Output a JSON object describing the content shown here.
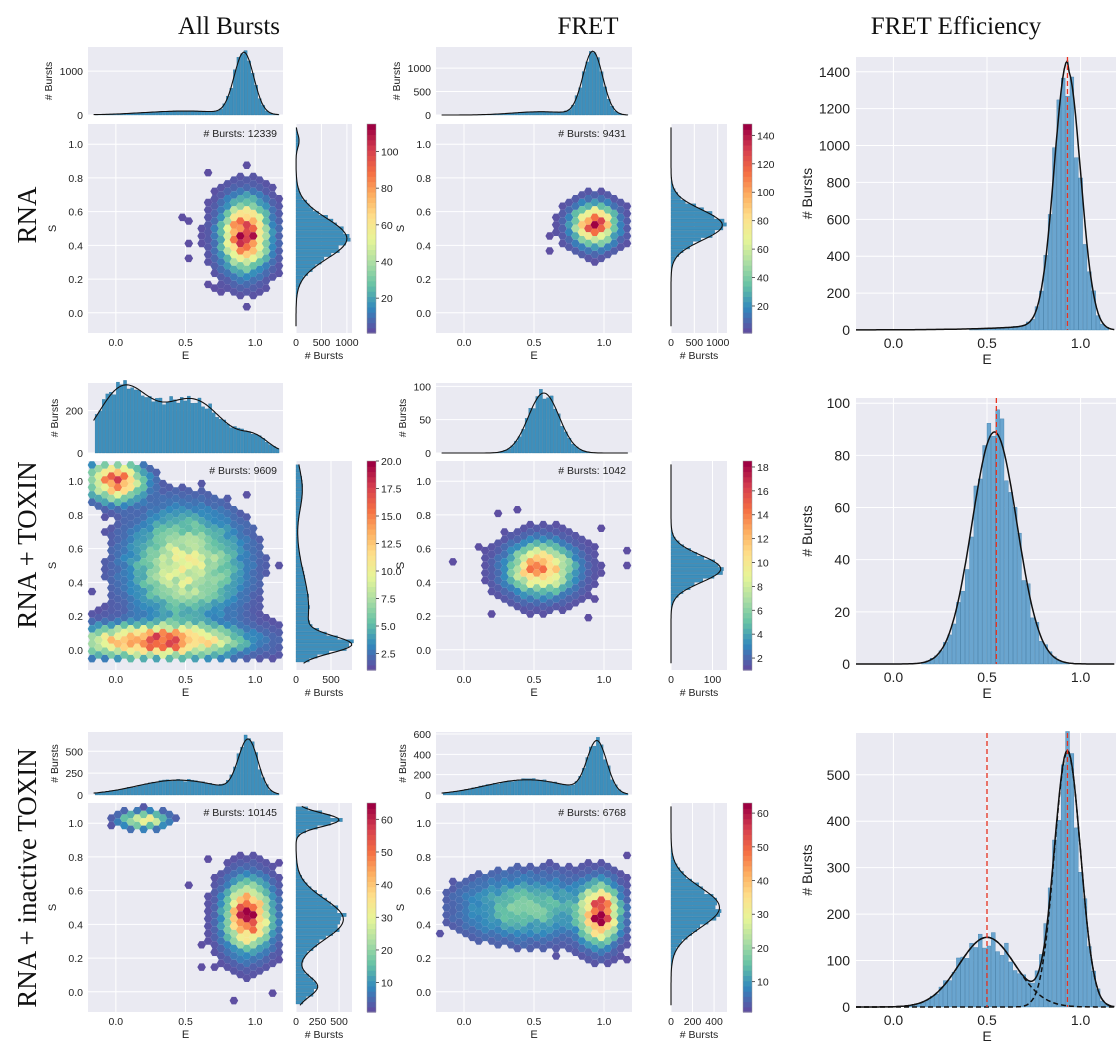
{
  "column_titles": [
    "All Bursts",
    "FRET",
    "FRET Efficiency"
  ],
  "row_titles": [
    "RNA",
    "RNA + TOXIN",
    "RNA + inactive TOXIN"
  ],
  "colors": {
    "panel_bg": "#eaeaf2",
    "grid": "#ffffff",
    "hist_bar": "#3d8fbc",
    "big_hist_bar": "#6aa5cf",
    "kde": "#111111",
    "mean_line": "#e8331f",
    "colormap": [
      "#5e4fa2",
      "#3288bd",
      "#66c2a5",
      "#abdda4",
      "#e6f598",
      "#fee08b",
      "#fdae61",
      "#f46d43",
      "#d53e4f",
      "#9e0142"
    ]
  },
  "chart_data": [
    {
      "type": "heatmap",
      "row": "RNA",
      "column": "All Bursts",
      "xlabel": "E",
      "ylabel": "S",
      "annotation": "# Bursts: 12339",
      "xlim": [
        -0.2,
        1.2
      ],
      "ylim": [
        -0.12,
        1.12
      ],
      "xticks": [
        "0.0",
        "0.5",
        "1.0"
      ],
      "yticks": [
        "0.0",
        "0.2",
        "0.4",
        "0.6",
        "0.8",
        "1.0"
      ],
      "top_hist": {
        "ylabel": "# Bursts",
        "yticks": [
          "0",
          "1000"
        ],
        "ymax": 1550,
        "peaks": [
          {
            "center": 0.92,
            "height": 1400,
            "width": 0.07
          },
          {
            "center": 0.5,
            "height": 90,
            "width": 0.3
          }
        ]
      },
      "side_hist": {
        "xlabel": "# Bursts",
        "xticks": [
          "0",
          "500",
          "1000"
        ],
        "xmax": 1100,
        "peaks": [
          {
            "center": 0.44,
            "height": 1000,
            "width": 0.12
          },
          {
            "center": 1.02,
            "height": 60,
            "width": 0.04
          }
        ]
      },
      "colorbar": {
        "ticks": [
          "20",
          "40",
          "60",
          "80",
          "100"
        ],
        "min": 1,
        "max": 115
      },
      "clusters": [
        {
          "cx": 0.93,
          "cy": 0.46,
          "sx": 0.1,
          "sy": 0.12,
          "peak": 110
        }
      ]
    },
    {
      "type": "heatmap",
      "row": "RNA",
      "column": "FRET",
      "xlabel": "E",
      "ylabel": "S",
      "annotation": "# Bursts: 9431",
      "xlim": [
        -0.2,
        1.2
      ],
      "ylim": [
        -0.12,
        1.12
      ],
      "xticks": [
        "0.0",
        "0.5",
        "1.0"
      ],
      "yticks": [
        "0.0",
        "0.2",
        "0.4",
        "0.6",
        "0.8",
        "1.0"
      ],
      "top_hist": {
        "ylabel": "# Bursts",
        "yticks": [
          "0",
          "500",
          "1000"
        ],
        "ymax": 1450,
        "peaks": [
          {
            "center": 0.92,
            "height": 1350,
            "width": 0.07
          },
          {
            "center": 0.55,
            "height": 70,
            "width": 0.2
          }
        ]
      },
      "side_hist": {
        "xlabel": "# Bursts",
        "xticks": [
          "0",
          "500",
          "1000"
        ],
        "xmax": 1200,
        "peaks": [
          {
            "center": 0.52,
            "height": 1100,
            "width": 0.09
          }
        ]
      },
      "colorbar": {
        "ticks": [
          "20",
          "40",
          "60",
          "80",
          "100",
          "120",
          "140"
        ],
        "min": 1,
        "max": 148
      },
      "clusters": [
        {
          "cx": 0.93,
          "cy": 0.52,
          "sx": 0.09,
          "sy": 0.07,
          "peak": 140
        }
      ]
    },
    {
      "type": "bar",
      "row": "RNA",
      "column": "FRET Efficiency",
      "xlabel": "E",
      "ylabel": "# Bursts",
      "xlim": [
        -0.2,
        1.2
      ],
      "ylim": [
        0,
        1480
      ],
      "xticks": [
        "0.0",
        "0.5",
        "1.0"
      ],
      "yticks": [
        "0",
        "200",
        "400",
        "600",
        "800",
        "1000",
        "1200",
        "1400"
      ],
      "mean_lines": [
        0.93
      ],
      "fits": [
        {
          "center": 0.93,
          "height": 1410,
          "width": 0.07,
          "tail": 0.25,
          "style": "solid"
        }
      ]
    },
    {
      "type": "heatmap",
      "row": "RNA + TOXIN",
      "column": "All Bursts",
      "xlabel": "E",
      "ylabel": "S",
      "annotation": "# Bursts: 9609",
      "xlim": [
        -0.2,
        1.2
      ],
      "ylim": [
        -0.12,
        1.12
      ],
      "xticks": [
        "0.0",
        "0.5",
        "1.0"
      ],
      "yticks": [
        "0.0",
        "0.2",
        "0.4",
        "0.6",
        "0.8",
        "1.0"
      ],
      "top_hist": {
        "ylabel": "# Bursts",
        "yticks": [
          "0",
          "200"
        ],
        "ymax": 330,
        "peaks": [
          {
            "center": 0.05,
            "height": 300,
            "width": 0.18
          },
          {
            "center": 0.55,
            "height": 250,
            "width": 0.22
          },
          {
            "center": 1.0,
            "height": 60,
            "width": 0.1
          }
        ]
      },
      "side_hist": {
        "xlabel": "# Bursts",
        "xticks": [
          "0",
          "500"
        ],
        "xmax": 800,
        "peaks": [
          {
            "center": 0.03,
            "height": 700,
            "width": 0.05
          },
          {
            "center": 0.25,
            "height": 180,
            "width": 0.2
          },
          {
            "center": 0.95,
            "height": 90,
            "width": 0.12
          }
        ]
      },
      "colorbar": {
        "ticks": [
          "2.5",
          "5.0",
          "7.5",
          "10.0",
          "12.5",
          "15.0",
          "17.5",
          "20.0"
        ],
        "min": 1,
        "max": 20
      },
      "clusters": [
        {
          "cx": 0.3,
          "cy": 0.05,
          "sx": 0.35,
          "sy": 0.06,
          "peak": 17
        },
        {
          "cx": 0.0,
          "cy": 1.0,
          "sx": 0.12,
          "sy": 0.07,
          "peak": 16
        },
        {
          "cx": 0.5,
          "cy": 0.5,
          "sx": 0.25,
          "sy": 0.2,
          "peak": 9
        }
      ]
    },
    {
      "type": "heatmap",
      "row": "RNA + TOXIN",
      "column": "FRET",
      "xlabel": "E",
      "ylabel": "S",
      "annotation": "# Bursts: 1042",
      "xlim": [
        -0.2,
        1.2
      ],
      "ylim": [
        -0.12,
        1.12
      ],
      "xticks": [
        "0.0",
        "0.5",
        "1.0"
      ],
      "yticks": [
        "0.0",
        "0.2",
        "0.4",
        "0.6",
        "0.8",
        "1.0"
      ],
      "top_hist": {
        "ylabel": "# Bursts",
        "yticks": [
          "0",
          "50",
          "100"
        ],
        "ymax": 105,
        "peaks": [
          {
            "center": 0.57,
            "height": 90,
            "width": 0.11
          }
        ]
      },
      "side_hist": {
        "xlabel": "# Bursts",
        "xticks": [
          "0",
          "100"
        ],
        "xmax": 135,
        "peaks": [
          {
            "center": 0.48,
            "height": 120,
            "width": 0.08
          }
        ]
      },
      "colorbar": {
        "ticks": [
          "2",
          "4",
          "6",
          "8",
          "10",
          "12",
          "14",
          "16",
          "18"
        ],
        "min": 1,
        "max": 18.5
      },
      "clusters": [
        {
          "cx": 0.55,
          "cy": 0.48,
          "sx": 0.14,
          "sy": 0.09,
          "peak": 14
        }
      ]
    },
    {
      "type": "bar",
      "row": "RNA + TOXIN",
      "column": "FRET Efficiency",
      "xlabel": "E",
      "ylabel": "# Bursts",
      "xlim": [
        -0.2,
        1.2
      ],
      "ylim": [
        0,
        102
      ],
      "xticks": [
        "0.0",
        "0.5",
        "1.0"
      ],
      "yticks": [
        "0",
        "20",
        "40",
        "60",
        "80",
        "100"
      ],
      "mean_lines": [
        0.55
      ],
      "fits": [
        {
          "center": 0.54,
          "height": 89,
          "width": 0.12,
          "tail": 0,
          "style": "solid"
        }
      ]
    },
    {
      "type": "heatmap",
      "row": "RNA + inactive TOXIN",
      "column": "All Bursts",
      "xlabel": "E",
      "ylabel": "S",
      "annotation": "# Bursts: 10145",
      "xlim": [
        -0.2,
        1.2
      ],
      "ylim": [
        -0.12,
        1.12
      ],
      "xticks": [
        "0.0",
        "0.5",
        "1.0"
      ],
      "yticks": [
        "0.0",
        "0.2",
        "0.4",
        "0.6",
        "0.8",
        "1.0"
      ],
      "top_hist": {
        "ylabel": "# Bursts",
        "yticks": [
          "0",
          "250",
          "500"
        ],
        "ymax": 720,
        "peaks": [
          {
            "center": 0.95,
            "height": 600,
            "width": 0.07
          },
          {
            "center": 0.45,
            "height": 170,
            "width": 0.3
          }
        ]
      },
      "side_hist": {
        "xlabel": "# Bursts",
        "xticks": [
          "0",
          "250",
          "500"
        ],
        "xmax": 650,
        "peaks": [
          {
            "center": 0.43,
            "height": 550,
            "width": 0.12
          },
          {
            "center": 1.02,
            "height": 500,
            "width": 0.04
          },
          {
            "center": 0.03,
            "height": 250,
            "width": 0.06
          }
        ]
      },
      "colorbar": {
        "ticks": [
          "10",
          "20",
          "30",
          "40",
          "50",
          "60"
        ],
        "min": 1,
        "max": 65
      },
      "clusters": [
        {
          "cx": 0.95,
          "cy": 0.45,
          "sx": 0.1,
          "sy": 0.12,
          "peak": 62
        },
        {
          "cx": 0.2,
          "cy": 1.02,
          "sx": 0.1,
          "sy": 0.03,
          "peak": 35
        }
      ]
    },
    {
      "type": "heatmap",
      "row": "RNA + inactive TOXIN",
      "column": "FRET",
      "xlabel": "E",
      "ylabel": "S",
      "annotation": "# Bursts: 6768",
      "xlim": [
        -0.2,
        1.2
      ],
      "ylim": [
        -0.12,
        1.12
      ],
      "xticks": [
        "0.0",
        "0.5",
        "1.0"
      ],
      "yticks": [
        "0.0",
        "0.2",
        "0.4",
        "0.6",
        "0.8",
        "1.0"
      ],
      "top_hist": {
        "ylabel": "# Bursts",
        "yticks": [
          "0",
          "200",
          "400",
          "600"
        ],
        "ymax": 620,
        "peaks": [
          {
            "center": 0.95,
            "height": 500,
            "width": 0.07
          },
          {
            "center": 0.45,
            "height": 150,
            "width": 0.3
          }
        ]
      },
      "side_hist": {
        "xlabel": "# Bursts",
        "xticks": [
          "0",
          "200",
          "400"
        ],
        "xmax": 520,
        "peaks": [
          {
            "center": 0.5,
            "height": 450,
            "width": 0.12
          }
        ]
      },
      "colorbar": {
        "ticks": [
          "10",
          "20",
          "30",
          "40",
          "50",
          "60"
        ],
        "min": 1,
        "max": 63
      },
      "clusters": [
        {
          "cx": 0.97,
          "cy": 0.46,
          "sx": 0.08,
          "sy": 0.1,
          "peak": 60
        },
        {
          "cx": 0.45,
          "cy": 0.5,
          "sx": 0.3,
          "sy": 0.12,
          "peak": 16
        }
      ]
    },
    {
      "type": "bar",
      "row": "RNA + inactive TOXIN",
      "column": "FRET Efficiency",
      "xlabel": "E",
      "ylabel": "# Bursts",
      "xlim": [
        -0.2,
        1.2
      ],
      "ylim": [
        0,
        590
      ],
      "xticks": [
        "0.0",
        "0.5",
        "1.0"
      ],
      "yticks": [
        "0",
        "100",
        "200",
        "300",
        "400",
        "500"
      ],
      "mean_lines": [
        0.5,
        0.93
      ],
      "fits": [
        {
          "center": 0.5,
          "height": 150,
          "width": 0.15,
          "tail": 0,
          "style": "dashed"
        },
        {
          "center": 0.93,
          "height": 550,
          "width": 0.07,
          "tail": 0,
          "style": "dashed"
        },
        {
          "components": [
            0,
            1
          ],
          "style": "solid"
        }
      ]
    }
  ]
}
